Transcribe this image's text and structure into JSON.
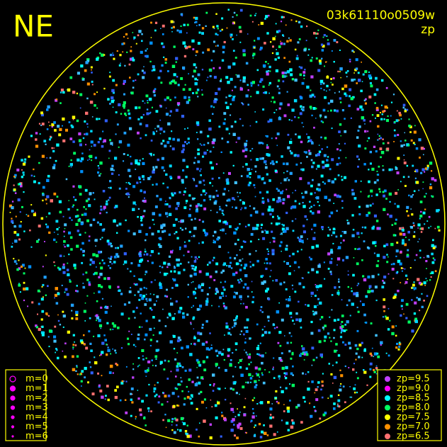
{
  "header": {
    "corner": "NE",
    "image_id": "03k61110o0509w",
    "mode": "zp"
  },
  "m_legend": {
    "color": "#ff00ff",
    "items": [
      "m=0",
      "m=1",
      "m=2",
      "m=3",
      "m=4",
      "m=5",
      "m=6"
    ]
  },
  "zp_legend": {
    "items": [
      {
        "label": "zp=9.5",
        "color": "#c040ff"
      },
      {
        "label": "zp=9.0",
        "color": "#ff00ff"
      },
      {
        "label": "zp=8.5",
        "color": "#00ffff"
      },
      {
        "label": "zp=8.0",
        "color": "#00ff60"
      },
      {
        "label": "zp=7.5",
        "color": "#ffff00"
      },
      {
        "label": "zp=7.0",
        "color": "#ff9000"
      },
      {
        "label": "zp=6.5",
        "color": "#ff7070"
      }
    ]
  }
}
